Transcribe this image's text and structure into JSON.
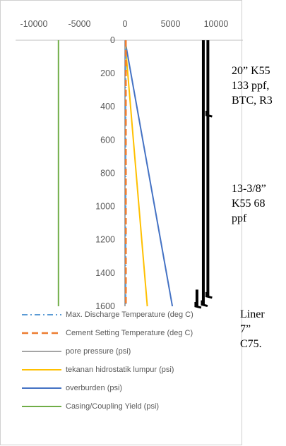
{
  "chart_data": {
    "type": "line",
    "x_ticks": [
      "-10000",
      "-5000",
      "0",
      "5000",
      "10000"
    ],
    "y_ticks": [
      "0",
      "200",
      "400",
      "600",
      "800",
      "1000",
      "1200",
      "1400",
      "1600"
    ],
    "xlim": [
      -12000,
      13000
    ],
    "ylim": [
      0,
      1600
    ],
    "y_reversed": true,
    "x_axis_position": "top",
    "grid": false,
    "legend_position": "bottom",
    "series": [
      {
        "name": "Max. Discharge Temperature (deg C)",
        "color": "#5B9BD5",
        "dash": "dashdot",
        "x": [
          70,
          80
        ],
        "y": [
          0,
          1600
        ]
      },
      {
        "name": "Cement Setting Temperature (deg C)",
        "color": "#ED7D31",
        "dash": "dash",
        "x": [
          90,
          100
        ],
        "y": [
          0,
          1600
        ]
      },
      {
        "name": "pore pressure (psi)",
        "color": "#A5A5A5",
        "dash": "solid",
        "x": [
          0,
          0
        ],
        "y": [
          0,
          1600
        ]
      },
      {
        "name": "tekanan hidrostatik lumpur (psi)",
        "color": "#FFC000",
        "dash": "solid",
        "x": [
          0,
          2450
        ],
        "y": [
          0,
          1600
        ]
      },
      {
        "name": "overburden (psi)",
        "color": "#4472C4",
        "dash": "solid",
        "x": [
          0,
          5200
        ],
        "y": [
          0,
          1600
        ]
      },
      {
        "name": "Casing/Coupling Yield (psi)",
        "color": "#70AD47",
        "dash": "solid",
        "x": [
          -7300,
          -7300
        ],
        "y": [
          0,
          1600
        ]
      }
    ],
    "casing_marks": [
      {
        "x": 8600,
        "y_top": 0,
        "y_bottom": 1590,
        "shoe_at": 1590
      },
      {
        "x": 9100,
        "y_top": 0,
        "y_bottom": 1540,
        "shoe_at": [
          450,
          1540
        ]
      },
      {
        "x": 7900,
        "y_top": 1500,
        "y_bottom": 1600,
        "shoe_at": 1600
      }
    ]
  },
  "annotations": {
    "casing_20": "20” K55\n133 ppf,\nBTC, R3",
    "casing_13": "13-3/8”\nK55 68\nppf",
    "liner_7": "Liner\n7”\nC75."
  }
}
